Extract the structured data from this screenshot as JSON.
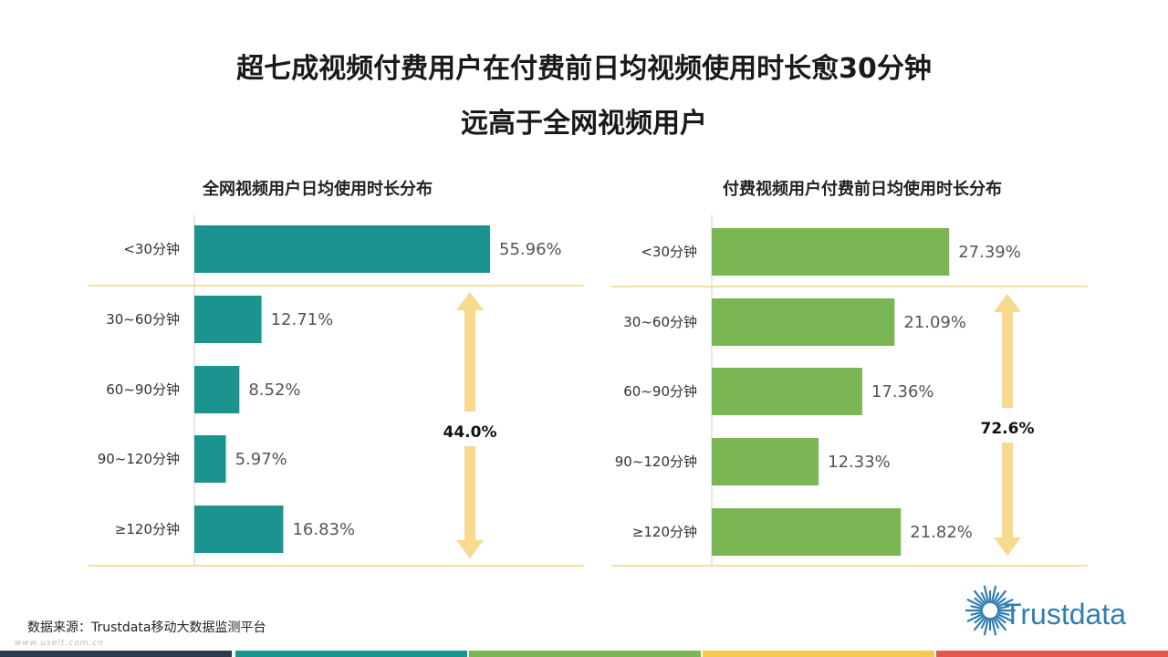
{
  "title": {
    "line1": "超七成视频付费用户在付费前日均视频使用时长愈30分钟",
    "line2": "远高于全网视频用户"
  },
  "chart_data": [
    {
      "type": "bar",
      "orientation": "horizontal",
      "title": "全网视频用户日均使用时长分布",
      "categories": [
        "<30分钟",
        "30~60分钟",
        "60~90分钟",
        "90~120分钟",
        "≥120分钟"
      ],
      "values": [
        55.96,
        12.71,
        8.52,
        5.97,
        16.83
      ],
      "value_labels": [
        "55.96%",
        "12.71%",
        "8.52%",
        "5.97%",
        "16.83%"
      ],
      "bar_color": "#1b9490",
      "annotation": "44.0%"
    },
    {
      "type": "bar",
      "orientation": "horizontal",
      "title": "付费视频用户付费前日均使用时长分布",
      "categories": [
        "<30分钟",
        "30~60分钟",
        "60~90分钟",
        "90~120分钟",
        "≥120分钟"
      ],
      "values": [
        27.39,
        21.09,
        17.36,
        12.33,
        21.82
      ],
      "value_labels": [
        "27.39%",
        "21.09%",
        "17.36%",
        "12.33%",
        "21.82%"
      ],
      "bar_color": "#7ab654",
      "annotation": "72.6%"
    }
  ],
  "source": "数据来源：Trustdata移动大数据监测平台",
  "watermark": "www.useit.com.cn",
  "logo_text": "Trustdata",
  "colors": {
    "arrow": "#f8d98e",
    "divider": "#f3dfa6",
    "stripes": [
      "#2b3a4a",
      "#1b9490",
      "#7ab654",
      "#f3c94e",
      "#e4574b"
    ]
  }
}
